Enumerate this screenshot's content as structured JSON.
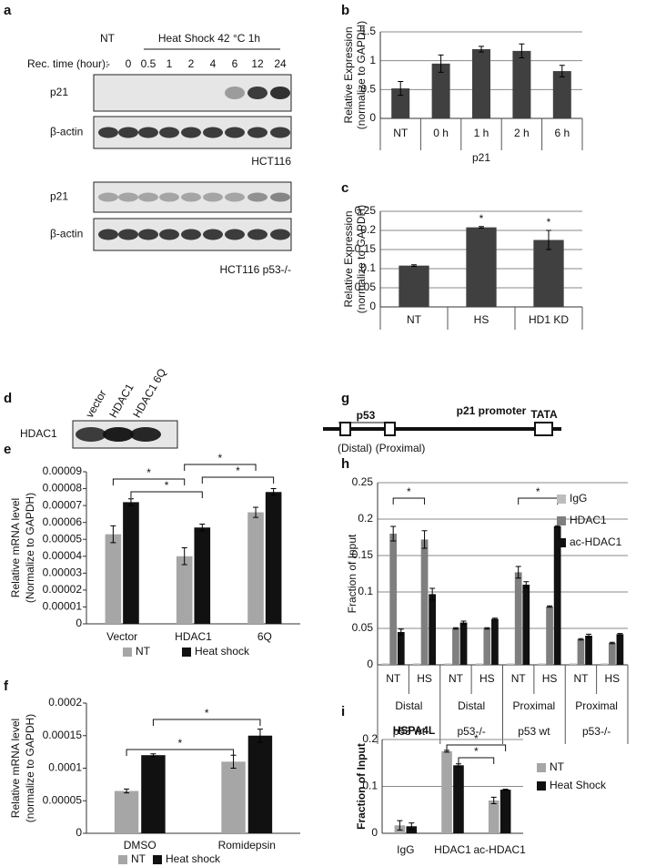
{
  "figure": {
    "panel_letters": [
      "a",
      "b",
      "c",
      "d",
      "e",
      "f",
      "g",
      "h",
      "i"
    ],
    "blot_a": {
      "nt": "NT",
      "treatment": "Heat Shock 42 °C 1h",
      "rec_time": "Rec. time (hour):",
      "times": [
        "-",
        "0",
        "0.5",
        "1",
        "2",
        "4",
        "6",
        "12",
        "24"
      ],
      "rows": [
        "p21",
        "β-actin",
        "p21",
        "β-actin"
      ],
      "cell_lines": [
        "HCT116",
        "HCT116 p53-/-"
      ]
    },
    "blot_d": {
      "lanes": [
        "vector",
        "HDAC1",
        "HDAC1 6Q"
      ],
      "row": "HDAC1"
    },
    "diagram_g": {
      "title": "p21 promoter",
      "site": "p53",
      "tata": "TATA",
      "distal": "(Distal)",
      "proximal": "(Proximal)"
    }
  },
  "chart_data": [
    {
      "type": "bar",
      "ylabel": [
        "Relative Expression",
        "(normalize to GAPDH)"
      ],
      "xlabel": "p21",
      "categories": [
        "NT",
        "0 h",
        "1 h",
        "2 h",
        "6 h"
      ],
      "values": [
        0.52,
        0.95,
        1.2,
        1.17,
        0.82
      ],
      "errors": [
        0.12,
        0.15,
        0.05,
        0.12,
        0.1
      ],
      "color": "#404040",
      "ylim": [
        0,
        1.5
      ],
      "yticks": [
        0,
        0.5,
        1,
        1.5
      ],
      "grid": true
    },
    {
      "type": "bar",
      "ylabel": [
        "Relative Expression",
        "(normalize to GAPDH)"
      ],
      "categories": [
        "NT",
        "HS",
        "HD1 KD"
      ],
      "values": [
        0.108,
        0.208,
        0.175
      ],
      "errors": [
        0.002,
        0.002,
        0.025
      ],
      "significance": [
        null,
        "*",
        "*"
      ],
      "color": "#404040",
      "ylim": [
        0,
        0.25
      ],
      "yticks": [
        0,
        0.05,
        0.1,
        0.15,
        0.2,
        0.25
      ],
      "grid": true
    },
    {
      "type": "bar",
      "ylabel": [
        "Relative mRNA level",
        "(Normalize to GAPDH)"
      ],
      "categories": [
        "Vector",
        "HDAC1",
        "6Q"
      ],
      "series": [
        {
          "name": "NT",
          "color": "#a6a6a6",
          "values": [
            5.3e-05,
            4e-05,
            6.6e-05
          ],
          "errors": [
            5e-06,
            5e-06,
            3e-06
          ]
        },
        {
          "name": "Heat shock",
          "color": "#111111",
          "values": [
            7.2e-05,
            5.7e-05,
            7.8e-05
          ],
          "errors": [
            2e-06,
            2e-06,
            2e-06
          ]
        }
      ],
      "significance": [
        "*",
        "*",
        "*",
        "*"
      ],
      "ylim": [
        0,
        9e-05
      ],
      "yticks": [
        0,
        1e-05,
        2e-05,
        3e-05,
        4e-05,
        5e-05,
        6e-05,
        7e-05,
        8e-05,
        9e-05
      ],
      "grid": false
    },
    {
      "type": "bar",
      "ylabel": [
        "Relative mRNA level",
        "(normalize to GAPDH)"
      ],
      "categories": [
        "DMSO",
        "Romidepsin"
      ],
      "series": [
        {
          "name": "NT",
          "color": "#a6a6a6",
          "values": [
            6.5e-05,
            0.00011
          ],
          "errors": [
            3e-06,
            1e-05
          ]
        },
        {
          "name": "Heat shock",
          "color": "#111111",
          "values": [
            0.00012,
            0.00015
          ],
          "errors": [
            2e-06,
            1e-05
          ]
        }
      ],
      "significance": [
        "*",
        "*"
      ],
      "ylim": [
        0,
        0.0002
      ],
      "yticks": [
        0,
        5e-05,
        0.0001,
        0.00015,
        0.0002
      ],
      "grid": false
    },
    {
      "type": "bar",
      "ylabel": "Fraction of Input",
      "categories": [
        "NT",
        "HS",
        "NT",
        "HS",
        "NT",
        "HS",
        "NT",
        "HS"
      ],
      "group_labels": [
        "Distal",
        "Distal",
        "Proximal",
        "Proximal"
      ],
      "group_sublabels": [
        "p53 wt",
        "p53-/-",
        "p53 wt",
        "p53-/-"
      ],
      "series": [
        {
          "name": "IgG",
          "color": "#bdbdbd",
          "values": [
            0.002,
            0.002,
            0.002,
            0.002,
            0.002,
            0.002,
            0.002,
            0.002
          ]
        },
        {
          "name": "HDAC1",
          "color": "#7f7f7f",
          "values": [
            0.18,
            0.172,
            0.05,
            0.05,
            0.127,
            0.08,
            0.035,
            0.03
          ],
          "errors": [
            0.01,
            0.012,
            0.001,
            0.001,
            0.008,
            0.001,
            0.001,
            0.001
          ]
        },
        {
          "name": "ac-HDAC1",
          "color": "#111111",
          "values": [
            0.045,
            0.097,
            0.058,
            0.063,
            0.11,
            0.19,
            0.04,
            0.042
          ],
          "errors": [
            0.004,
            0.008,
            0.002,
            0.001,
            0.004,
            0.001,
            0.002,
            0.001
          ]
        }
      ],
      "significance": [
        "*",
        "*"
      ],
      "ylim": [
        0,
        0.25
      ],
      "yticks": [
        0,
        0.05,
        0.1,
        0.15,
        0.2,
        0.25
      ],
      "grid": true
    },
    {
      "type": "bar",
      "title": "HSPA4L",
      "ylabel": "Fraction of Input",
      "categories": [
        "IgG",
        "HDAC1",
        "ac-HDAC1"
      ],
      "series": [
        {
          "name": "NT",
          "color": "#a6a6a6",
          "values": [
            0.017,
            0.175,
            0.07
          ],
          "errors": [
            0.01,
            0.002,
            0.007
          ]
        },
        {
          "name": "Heat Shock",
          "color": "#111111",
          "values": [
            0.015,
            0.145,
            0.093
          ],
          "errors": [
            0.007,
            0.003,
            0.001
          ]
        }
      ],
      "significance": [
        "*",
        "*"
      ],
      "ylim": [
        0,
        0.2
      ],
      "yticks": [
        0,
        0.1,
        0.2
      ],
      "grid": true
    }
  ]
}
